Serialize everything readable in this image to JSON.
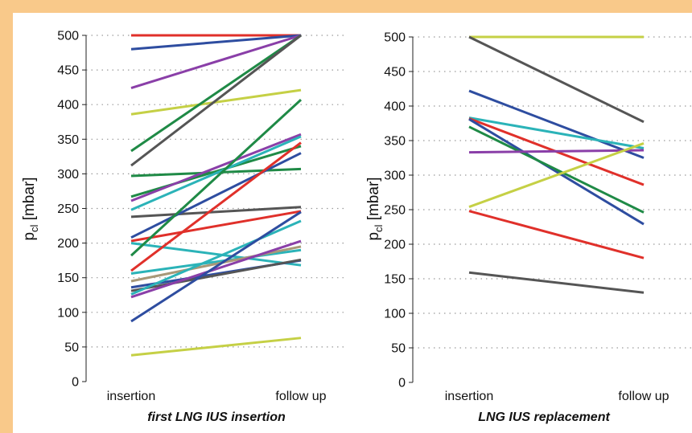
{
  "frame_color": "#f9c98a",
  "chart_data": [
    {
      "type": "line",
      "caption": "first LNG IUS insertion",
      "ylabel_main": "p",
      "ylabel_sub": "cl",
      "ylabel_unit": " [mbar]",
      "categories": [
        "insertion",
        "follow up"
      ],
      "ylim": [
        0,
        500
      ],
      "yticks": [
        0,
        50,
        100,
        150,
        200,
        250,
        300,
        350,
        400,
        450,
        500
      ],
      "grid": "dotted horizontal",
      "series": [
        {
          "color": "#e0302a",
          "values": [
            500,
            500
          ]
        },
        {
          "color": "#2e4da0",
          "values": [
            480,
            500
          ]
        },
        {
          "color": "#8a3fa8",
          "values": [
            424,
            500
          ]
        },
        {
          "color": "#c5d045",
          "values": [
            386,
            421
          ]
        },
        {
          "color": "#1f8a46",
          "values": [
            333,
            500
          ]
        },
        {
          "color": "#555555",
          "values": [
            312,
            500
          ]
        },
        {
          "color": "#1f8a46",
          "values": [
            297,
            307
          ]
        },
        {
          "color": "#1f8a46",
          "values": [
            267,
            340
          ]
        },
        {
          "color": "#8a3fa8",
          "values": [
            261,
            357
          ]
        },
        {
          "color": "#2bb3b8",
          "values": [
            248,
            354
          ]
        },
        {
          "color": "#555555",
          "values": [
            238,
            252
          ]
        },
        {
          "color": "#2e4da0",
          "values": [
            208,
            330
          ]
        },
        {
          "color": "#e0302a",
          "values": [
            203,
            246
          ]
        },
        {
          "color": "#2bb3b8",
          "values": [
            200,
            168
          ]
        },
        {
          "color": "#1f8a46",
          "values": [
            182,
            407
          ]
        },
        {
          "color": "#e0302a",
          "values": [
            160,
            345
          ]
        },
        {
          "color": "#2bb3b8",
          "values": [
            156,
            190
          ]
        },
        {
          "color": "#a89878",
          "values": [
            145,
            195
          ]
        },
        {
          "color": "#2e4da0",
          "values": [
            136,
            175
          ]
        },
        {
          "color": "#555555",
          "values": [
            131,
            176
          ]
        },
        {
          "color": "#2bb3b8",
          "values": [
            126,
            232
          ]
        },
        {
          "color": "#8a3fa8",
          "values": [
            122,
            203
          ]
        },
        {
          "color": "#2e4da0",
          "values": [
            87,
            245
          ]
        },
        {
          "color": "#c5d045",
          "values": [
            38,
            63
          ]
        }
      ]
    },
    {
      "type": "line",
      "caption": "LNG IUS replacement",
      "ylabel_main": "p",
      "ylabel_sub": "cl",
      "ylabel_unit": " [mbar]",
      "categories": [
        "insertion",
        "follow up"
      ],
      "ylim": [
        0,
        500
      ],
      "yticks": [
        0,
        50,
        100,
        150,
        200,
        250,
        300,
        350,
        400,
        450,
        500
      ],
      "grid": "dotted horizontal",
      "series": [
        {
          "color": "#c5d045",
          "values": [
            500,
            500
          ]
        },
        {
          "color": "#555555",
          "values": [
            500,
            377
          ]
        },
        {
          "color": "#2e4da0",
          "values": [
            422,
            325
          ]
        },
        {
          "color": "#2bb3b8",
          "values": [
            383,
            339
          ]
        },
        {
          "color": "#e0302a",
          "values": [
            382,
            286
          ]
        },
        {
          "color": "#2e4da0",
          "values": [
            381,
            229
          ]
        },
        {
          "color": "#1f8a46",
          "values": [
            370,
            246
          ]
        },
        {
          "color": "#8a3fa8",
          "values": [
            333,
            336
          ]
        },
        {
          "color": "#c5d045",
          "values": [
            254,
            346
          ]
        },
        {
          "color": "#e0302a",
          "values": [
            248,
            180
          ]
        },
        {
          "color": "#555555",
          "values": [
            159,
            130
          ]
        }
      ]
    }
  ]
}
